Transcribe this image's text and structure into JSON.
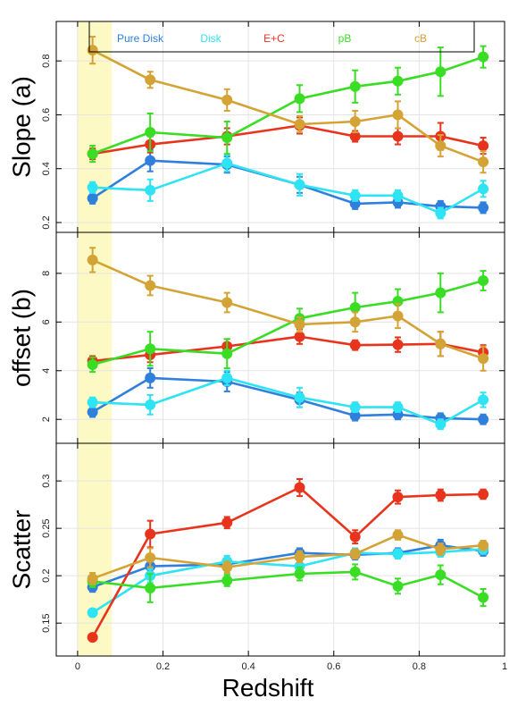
{
  "chart_data": {
    "type": "line",
    "xlabel": "Redshift",
    "xlim": [
      -0.05,
      1.0
    ],
    "x_ticks": [
      0,
      0.2,
      0.4,
      0.6,
      0.8,
      1
    ],
    "x_tick_labels": [
      "0",
      "0.2",
      "0.4",
      "0.6",
      "0.8",
      "1"
    ],
    "highlight_x_range": [
      0.0,
      0.08
    ],
    "highlight_color": "#fcf9c4",
    "grid": true,
    "legend": {
      "placement": "top",
      "entries": [
        {
          "name": "Pure Disk",
          "color": "#2f80dd"
        },
        {
          "name": "Disk",
          "color": "#2ee3f3"
        },
        {
          "name": "E+C",
          "color": "#e8341c"
        },
        {
          "name": "pB",
          "color": "#39dd24"
        },
        {
          "name": "cB",
          "color": "#d4a335"
        }
      ]
    },
    "panels": [
      {
        "id": "slope",
        "ylabel": "Slope (a)",
        "ylim": [
          0.18,
          0.93
        ],
        "y_ticks": [
          0.2,
          0.4,
          0.6,
          0.8
        ],
        "y_tick_labels": [
          "0.2",
          "0.4",
          "0.6",
          "0.8"
        ],
        "series": [
          {
            "name": "Pure Disk",
            "color": "#2f80dd",
            "x": [
              0.035,
              0.17,
              0.35,
              0.52,
              0.65,
              0.75,
              0.85,
              0.95
            ],
            "y": [
              0.29,
              0.43,
              0.415,
              0.34,
              0.27,
              0.275,
              0.26,
              0.255
            ],
            "err": [
              0.02,
              0.04,
              0.03,
              0.03,
              0.02,
              0.02,
              0.02,
              0.02
            ]
          },
          {
            "name": "Disk",
            "color": "#2ee3f3",
            "x": [
              0.035,
              0.17,
              0.35,
              0.52,
              0.65,
              0.75,
              0.85,
              0.95
            ],
            "y": [
              0.33,
              0.32,
              0.42,
              0.34,
              0.3,
              0.3,
              0.235,
              0.325
            ],
            "err": [
              0.02,
              0.04,
              0.03,
              0.04,
              0.02,
              0.02,
              0.02,
              0.03
            ]
          },
          {
            "name": "E+C",
            "color": "#e8341c",
            "x": [
              0.035,
              0.17,
              0.35,
              0.52,
              0.65,
              0.75,
              0.85,
              0.95
            ],
            "y": [
              0.455,
              0.49,
              0.52,
              0.56,
              0.52,
              0.52,
              0.52,
              0.485
            ],
            "err": [
              0.02,
              0.03,
              0.03,
              0.03,
              0.02,
              0.03,
              0.05,
              0.03
            ]
          },
          {
            "name": "pB",
            "color": "#39dd24",
            "x": [
              0.035,
              0.17,
              0.35,
              0.52,
              0.65,
              0.75,
              0.85,
              0.95
            ],
            "y": [
              0.455,
              0.535,
              0.515,
              0.66,
              0.705,
              0.725,
              0.76,
              0.815
            ],
            "err": [
              0.03,
              0.07,
              0.06,
              0.05,
              0.06,
              0.05,
              0.09,
              0.04
            ]
          },
          {
            "name": "cB",
            "color": "#d4a335",
            "x": [
              0.035,
              0.17,
              0.35,
              0.52,
              0.65,
              0.75,
              0.85,
              0.95
            ],
            "y": [
              0.84,
              0.73,
              0.655,
              0.565,
              0.575,
              0.6,
              0.485,
              0.425
            ],
            "err": [
              0.05,
              0.03,
              0.04,
              0.03,
              0.04,
              0.05,
              0.04,
              0.04
            ]
          }
        ]
      },
      {
        "id": "offset",
        "ylabel": "offset (b)",
        "ylim": [
          1.2,
          9.5
        ],
        "y_ticks": [
          2,
          4,
          6,
          8
        ],
        "y_tick_labels": [
          "2",
          "4",
          "6",
          "8"
        ],
        "series": [
          {
            "name": "Pure Disk",
            "color": "#2f80dd",
            "x": [
              0.035,
              0.17,
              0.35,
              0.52,
              0.65,
              0.75,
              0.85,
              0.95
            ],
            "y": [
              2.3,
              3.7,
              3.55,
              2.8,
              2.15,
              2.2,
              2.05,
              2.0
            ],
            "err": [
              0.2,
              0.4,
              0.4,
              0.3,
              0.2,
              0.2,
              0.2,
              0.2
            ]
          },
          {
            "name": "Disk",
            "color": "#2ee3f3",
            "x": [
              0.035,
              0.17,
              0.35,
              0.52,
              0.65,
              0.75,
              0.85,
              0.95
            ],
            "y": [
              2.7,
              2.6,
              3.7,
              2.9,
              2.5,
              2.5,
              1.8,
              2.8
            ],
            "err": [
              0.2,
              0.4,
              0.3,
              0.4,
              0.2,
              0.2,
              0.2,
              0.3
            ]
          },
          {
            "name": "E+C",
            "color": "#e8341c",
            "x": [
              0.035,
              0.17,
              0.35,
              0.52,
              0.65,
              0.75,
              0.85,
              0.95
            ],
            "y": [
              4.4,
              4.65,
              5.0,
              5.4,
              5.05,
              5.07,
              5.1,
              4.75
            ],
            "err": [
              0.2,
              0.3,
              0.3,
              0.3,
              0.2,
              0.3,
              0.5,
              0.3
            ]
          },
          {
            "name": "pB",
            "color": "#39dd24",
            "x": [
              0.035,
              0.17,
              0.35,
              0.52,
              0.65,
              0.75,
              0.85,
              0.95
            ],
            "y": [
              4.25,
              4.9,
              4.7,
              6.15,
              6.6,
              6.85,
              7.2,
              7.7
            ],
            "err": [
              0.3,
              0.7,
              0.6,
              0.4,
              0.6,
              0.5,
              0.8,
              0.4
            ]
          },
          {
            "name": "cB",
            "color": "#d4a335",
            "x": [
              0.035,
              0.17,
              0.35,
              0.52,
              0.65,
              0.75,
              0.85,
              0.95
            ],
            "y": [
              8.55,
              7.5,
              6.8,
              5.9,
              6.0,
              6.25,
              5.1,
              4.5
            ],
            "err": [
              0.5,
              0.4,
              0.4,
              0.3,
              0.4,
              0.5,
              0.5,
              0.5
            ]
          }
        ]
      },
      {
        "id": "scatter",
        "ylabel": "Scatter",
        "ylim": [
          0.12,
          0.335
        ],
        "y_ticks": [
          0.15,
          0.2,
          0.25,
          0.3
        ],
        "y_tick_labels": [
          "0.15",
          "0.2",
          "0.25",
          "0.3"
        ],
        "series": [
          {
            "name": "Pure Disk",
            "color": "#2f80dd",
            "x": [
              0.035,
              0.17,
              0.35,
              0.52,
              0.65,
              0.75,
              0.85,
              0.95
            ],
            "y": [
              0.188,
              0.21,
              0.212,
              0.224,
              0.222,
              0.224,
              0.232,
              0.226
            ],
            "err": [
              0.005,
              0.007,
              0.006,
              0.005,
              0.005,
              0.005,
              0.006,
              0.005
            ]
          },
          {
            "name": "Disk",
            "color": "#2ee3f3",
            "x": [
              0.035,
              0.17,
              0.35,
              0.52,
              0.65,
              0.75,
              0.85,
              0.95
            ],
            "y": [
              0.161,
              0.2,
              0.215,
              0.21,
              0.224,
              0.223,
              0.225,
              0.228
            ],
            "err": [
              0.004,
              0.007,
              0.006,
              0.005,
              0.005,
              0.005,
              0.005,
              0.005
            ]
          },
          {
            "name": "E+C",
            "color": "#e8341c",
            "x": [
              0.035,
              0.17,
              0.35,
              0.52,
              0.65,
              0.75,
              0.85,
              0.95
            ],
            "y": [
              0.135,
              0.244,
              0.256,
              0.293,
              0.241,
              0.283,
              0.285,
              0.286
            ],
            "err": [
              0.003,
              0.014,
              0.006,
              0.009,
              0.007,
              0.007,
              0.006,
              0.005
            ]
          },
          {
            "name": "pB",
            "color": "#39dd24",
            "x": [
              0.035,
              0.17,
              0.35,
              0.52,
              0.65,
              0.75,
              0.85,
              0.95
            ],
            "y": [
              0.194,
              0.187,
              0.195,
              0.202,
              0.204,
              0.189,
              0.201,
              0.177
            ],
            "err": [
              0.006,
              0.015,
              0.006,
              0.007,
              0.008,
              0.008,
              0.01,
              0.009
            ]
          },
          {
            "name": "cB",
            "color": "#d4a335",
            "x": [
              0.035,
              0.17,
              0.35,
              0.52,
              0.65,
              0.75,
              0.85,
              0.95
            ],
            "y": [
              0.197,
              0.219,
              0.209,
              0.22,
              0.223,
              0.243,
              0.228,
              0.232
            ],
            "err": [
              0.006,
              0.01,
              0.006,
              0.006,
              0.005,
              0.005,
              0.006,
              0.005
            ]
          }
        ]
      }
    ]
  }
}
